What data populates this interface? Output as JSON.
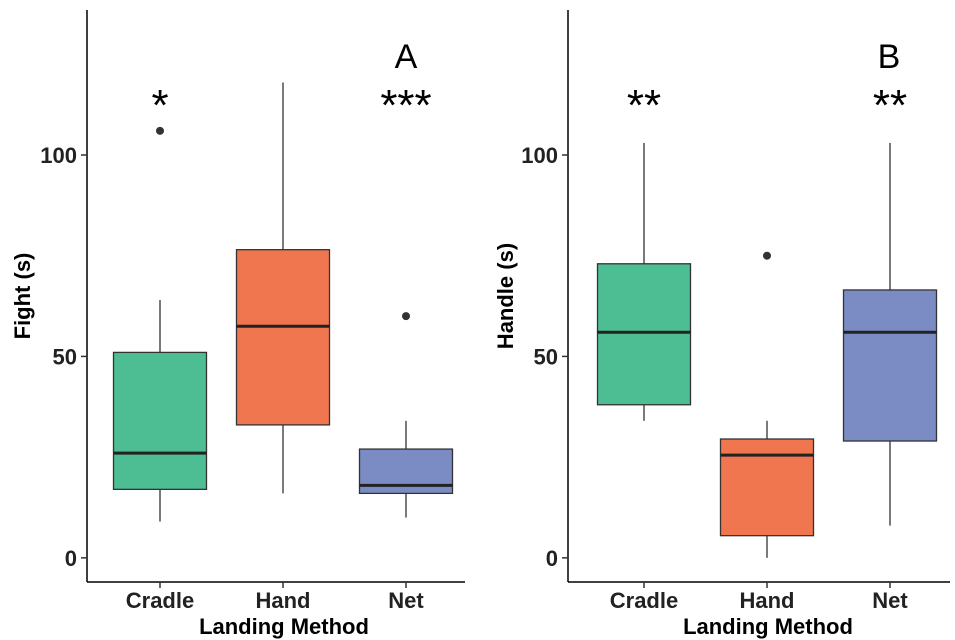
{
  "chart_data": [
    {
      "type": "boxplot",
      "panel_label": "A",
      "xlabel": "Landing Method",
      "ylabel": "Fight (s)",
      "ylim": [
        -6,
        136
      ],
      "yticks": [
        0,
        50,
        100
      ],
      "grid": false,
      "legend": "none",
      "categories": [
        "Cradle",
        "Hand",
        "Net"
      ],
      "boxes": [
        {
          "category": "Cradle",
          "color": "#4dbd93",
          "whisker_low": 9,
          "q1": 17,
          "median": 26,
          "q3": 51,
          "whisker_high": 64,
          "outliers": [
            106
          ],
          "significance": "*"
        },
        {
          "category": "Hand",
          "color": "#f07650",
          "whisker_low": 16,
          "q1": 33,
          "median": 57.5,
          "q3": 76.5,
          "whisker_high": 118,
          "outliers": [],
          "significance": ""
        },
        {
          "category": "Net",
          "color": "#7b8cc4",
          "whisker_low": 10,
          "q1": 16,
          "median": 18,
          "q3": 27,
          "whisker_high": 34,
          "outliers": [
            60
          ],
          "significance": "***"
        }
      ]
    },
    {
      "type": "boxplot",
      "panel_label": "B",
      "xlabel": "Landing Method",
      "ylabel": "Handle (s)",
      "ylim": [
        -6,
        136
      ],
      "yticks": [
        0,
        50,
        100
      ],
      "grid": false,
      "legend": "none",
      "categories": [
        "Cradle",
        "Hand",
        "Net"
      ],
      "boxes": [
        {
          "category": "Cradle",
          "color": "#4dbd93",
          "whisker_low": 34,
          "q1": 38,
          "median": 56,
          "q3": 73,
          "whisker_high": 103,
          "outliers": [],
          "significance": "**"
        },
        {
          "category": "Hand",
          "color": "#f07650",
          "whisker_low": 0,
          "q1": 5.5,
          "median": 25.5,
          "q3": 29.5,
          "whisker_high": 34,
          "outliers": [
            75
          ],
          "significance": ""
        },
        {
          "category": "Net",
          "color": "#7b8cc4",
          "whisker_low": 8,
          "q1": 29,
          "median": 56,
          "q3": 66.5,
          "whisker_high": 103,
          "outliers": [],
          "significance": "**"
        }
      ]
    }
  ]
}
